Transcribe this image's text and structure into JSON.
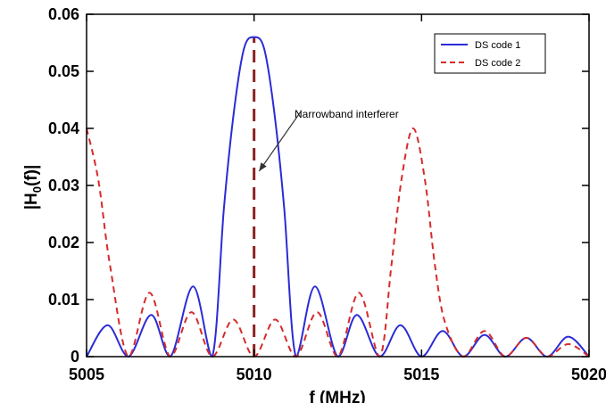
{
  "chart_data": {
    "type": "line",
    "title": "",
    "xlabel": "f (MHz)",
    "ylabel": "|H",
    "ylabel_sub": "0",
    "ylabel_tail": "(f)|",
    "xlim": [
      5005,
      5020
    ],
    "ylim": [
      0,
      0.06
    ],
    "xticks": [
      5005,
      5010,
      5015,
      5020
    ],
    "xtick_labels": [
      "5005",
      "5010",
      "5015",
      "5020"
    ],
    "yticks": [
      0,
      0.01,
      0.02,
      0.03,
      0.04,
      0.05,
      0.06
    ],
    "ytick_labels": [
      "0",
      "0.01",
      "0.02",
      "0.03",
      "0.04",
      "0.05",
      "0.06"
    ],
    "grid": false,
    "legend_position": "top-right",
    "series": [
      {
        "name": "DS code 1",
        "color": "#2b2bd6",
        "style": "solid",
        "x": [
          5005.0,
          5005.63,
          5006.25,
          5006.93,
          5007.5,
          5008.18,
          5008.75,
          5009.1,
          5009.4,
          5009.7,
          5010.0,
          5010.3,
          5010.6,
          5010.9,
          5011.25,
          5011.82,
          5012.5,
          5013.07,
          5013.75,
          5014.37,
          5015.0,
          5015.63,
          5016.25,
          5016.88,
          5017.5,
          5018.13,
          5018.75,
          5019.38,
          5020.0
        ],
        "y": [
          0.0,
          0.0055,
          0.0,
          0.0073,
          0.0,
          0.0123,
          0.0,
          0.026,
          0.043,
          0.054,
          0.056,
          0.054,
          0.043,
          0.026,
          0.0,
          0.0123,
          0.0,
          0.0073,
          0.0,
          0.0055,
          0.0,
          0.0045,
          0.0,
          0.0038,
          0.0,
          0.0033,
          0.0,
          0.0035,
          0.0
        ]
      },
      {
        "name": "DS code 2",
        "color": "#d62b2b",
        "style": "dashed",
        "x": [
          5005.0,
          5005.35,
          5005.7,
          5006.25,
          5006.88,
          5007.5,
          5008.13,
          5008.75,
          5009.38,
          5010.0,
          5010.63,
          5011.25,
          5011.88,
          5012.5,
          5013.13,
          5013.75,
          5014.1,
          5014.4,
          5014.75,
          5015.1,
          5015.4,
          5015.7,
          5016.25,
          5016.88,
          5017.5,
          5018.13,
          5018.75,
          5019.38,
          5020.0
        ],
        "y": [
          0.04,
          0.031,
          0.016,
          0.0,
          0.0112,
          0.0,
          0.0078,
          0.0,
          0.0065,
          0.0,
          0.0065,
          0.0,
          0.0078,
          0.0,
          0.0112,
          0.0,
          0.016,
          0.031,
          0.04,
          0.031,
          0.016,
          0.006,
          0.0,
          0.0045,
          0.0,
          0.0033,
          0.0,
          0.0022,
          0.0
        ]
      }
    ],
    "annotation": {
      "text": "Narrowband interferer",
      "marker_x": 5010.0,
      "marker_y_top": 0.056,
      "marker_color": "#8b2222",
      "arrow_tail_x": 5011.4,
      "arrow_tail_y": 0.043,
      "arrow_head_x": 5010.15,
      "arrow_head_y": 0.0325
    }
  }
}
